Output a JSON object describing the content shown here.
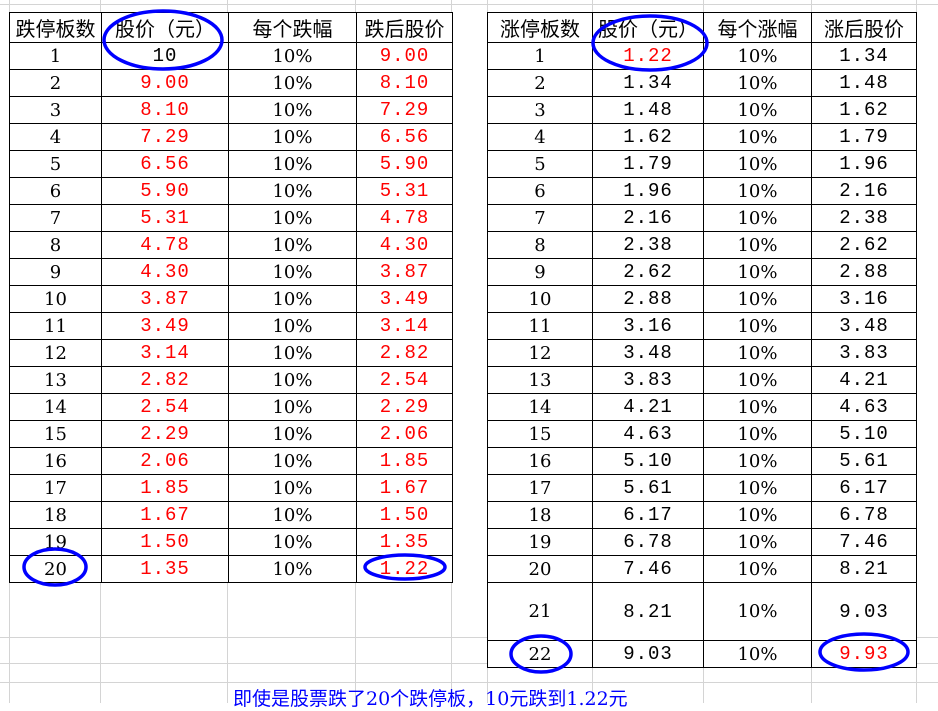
{
  "highlight_color": "#ff0000",
  "annotation_color": "#0000ff",
  "left": {
    "headers": [
      "跌停板数",
      "股价（元）",
      "每个跌幅",
      "跌后股价"
    ],
    "rows": [
      [
        "1",
        "10",
        "10%",
        "9.00"
      ],
      [
        "2",
        "9.00",
        "10%",
        "8.10"
      ],
      [
        "3",
        "8.10",
        "10%",
        "7.29"
      ],
      [
        "4",
        "7.29",
        "10%",
        "6.56"
      ],
      [
        "5",
        "6.56",
        "10%",
        "5.90"
      ],
      [
        "6",
        "5.90",
        "10%",
        "5.31"
      ],
      [
        "7",
        "5.31",
        "10%",
        "4.78"
      ],
      [
        "8",
        "4.78",
        "10%",
        "4.30"
      ],
      [
        "9",
        "4.30",
        "10%",
        "3.87"
      ],
      [
        "10",
        "3.87",
        "10%",
        "3.49"
      ],
      [
        "11",
        "3.49",
        "10%",
        "3.14"
      ],
      [
        "12",
        "3.14",
        "10%",
        "2.82"
      ],
      [
        "13",
        "2.82",
        "10%",
        "2.54"
      ],
      [
        "14",
        "2.54",
        "10%",
        "2.29"
      ],
      [
        "15",
        "2.29",
        "10%",
        "2.06"
      ],
      [
        "16",
        "2.06",
        "10%",
        "1.85"
      ],
      [
        "17",
        "1.85",
        "10%",
        "1.67"
      ],
      [
        "18",
        "1.67",
        "10%",
        "1.50"
      ],
      [
        "19",
        "1.50",
        "10%",
        "1.35"
      ],
      [
        "20",
        "1.35",
        "10%",
        "1.22"
      ]
    ]
  },
  "right": {
    "headers": [
      "涨停板数",
      "股价（元）",
      "每个涨幅",
      "涨后股价"
    ],
    "rows": [
      [
        "1",
        "1.22",
        "10%",
        "1.34"
      ],
      [
        "2",
        "1.34",
        "10%",
        "1.48"
      ],
      [
        "3",
        "1.48",
        "10%",
        "1.62"
      ],
      [
        "4",
        "1.62",
        "10%",
        "1.79"
      ],
      [
        "5",
        "1.79",
        "10%",
        "1.96"
      ],
      [
        "6",
        "1.96",
        "10%",
        "2.16"
      ],
      [
        "7",
        "2.16",
        "10%",
        "2.38"
      ],
      [
        "8",
        "2.38",
        "10%",
        "2.62"
      ],
      [
        "9",
        "2.62",
        "10%",
        "2.88"
      ],
      [
        "10",
        "2.88",
        "10%",
        "3.16"
      ],
      [
        "11",
        "3.16",
        "10%",
        "3.48"
      ],
      [
        "12",
        "3.48",
        "10%",
        "3.83"
      ],
      [
        "13",
        "3.83",
        "10%",
        "4.21"
      ],
      [
        "14",
        "4.21",
        "10%",
        "4.63"
      ],
      [
        "15",
        "4.63",
        "10%",
        "5.10"
      ],
      [
        "16",
        "5.10",
        "10%",
        "5.61"
      ],
      [
        "17",
        "5.61",
        "10%",
        "6.17"
      ],
      [
        "18",
        "6.17",
        "10%",
        "6.78"
      ],
      [
        "19",
        "6.78",
        "10%",
        "7.46"
      ],
      [
        "20",
        "7.46",
        "10%",
        "8.21"
      ],
      [
        "21",
        "8.21",
        "10%",
        "9.03"
      ],
      [
        "22",
        "9.03",
        "10%",
        "9.93"
      ]
    ]
  },
  "footer": "即使是股票跌了20个跌停板，10元跌到1.22元"
}
